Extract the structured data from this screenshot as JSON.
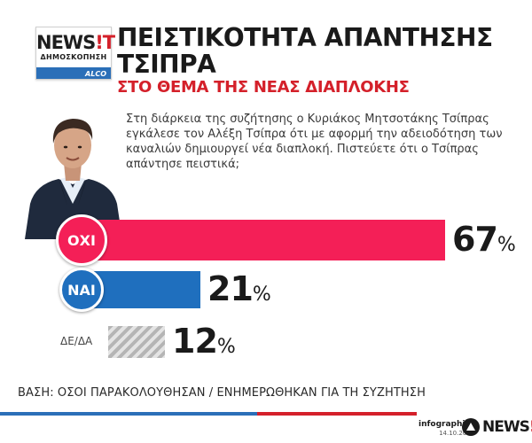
{
  "header": {
    "logo": {
      "brand": "NEWS",
      "brand_mark": "!T",
      "subtitle": "ΔΗΜΟΣΚΟΠΗΣΗ",
      "partner": "ALCO"
    },
    "title": "ΠΕΙΣΤΙΚΟΤΗΤΑ ΑΠΑΝΤΗΣΗΣ ΤΣΙΠΡΑ",
    "subtitle": "ΣΤΟ ΘΕΜΑ ΤΗΣ ΝΕΑΣ ΔΙΑΠΛΟΚΗΣ"
  },
  "question": "Στη διάρκεια της συζήτησης ο Κυριάκος Μητσοτάκης Τσίπρας εγκάλεσε τον Αλέξη Τσίπρα ότι με αφορμή την αδειοδότηση των καναλιών δημιουργεί νέα διαπλοκή. Πιστεύετε ότι ο Τσίπρας απάντησε πειστικά;",
  "chart_data": {
    "type": "bar",
    "orientation": "horizontal",
    "categories": [
      "ΟΧΙ",
      "ΝΑΙ",
      "ΔΕ/ΔΑ"
    ],
    "values": [
      67,
      21,
      12
    ],
    "value_suffix": "%",
    "xlim": [
      0,
      100
    ],
    "colors": [
      "#f41f57",
      "#1f6fbe",
      "#aaaaaa"
    ],
    "grid": false,
    "legend": "none"
  },
  "base_note": "ΒΑΣΗ: ΟΣΟΙ ΠΑΡΑΚΟΛΟΥΘΗΣΑΝ / ΕΝΗΜΕΡΩΘΗΚΑΝ ΓΙΑ ΤΗ ΣΥΖΗΤΗΣΗ",
  "footer": {
    "credit": "infographics",
    "date": "14.10.2016",
    "brand": "NEWS",
    "brand_mark": "!T"
  },
  "colors": {
    "accent_red": "#d4202a",
    "accent_blue": "#2b6fb8"
  }
}
